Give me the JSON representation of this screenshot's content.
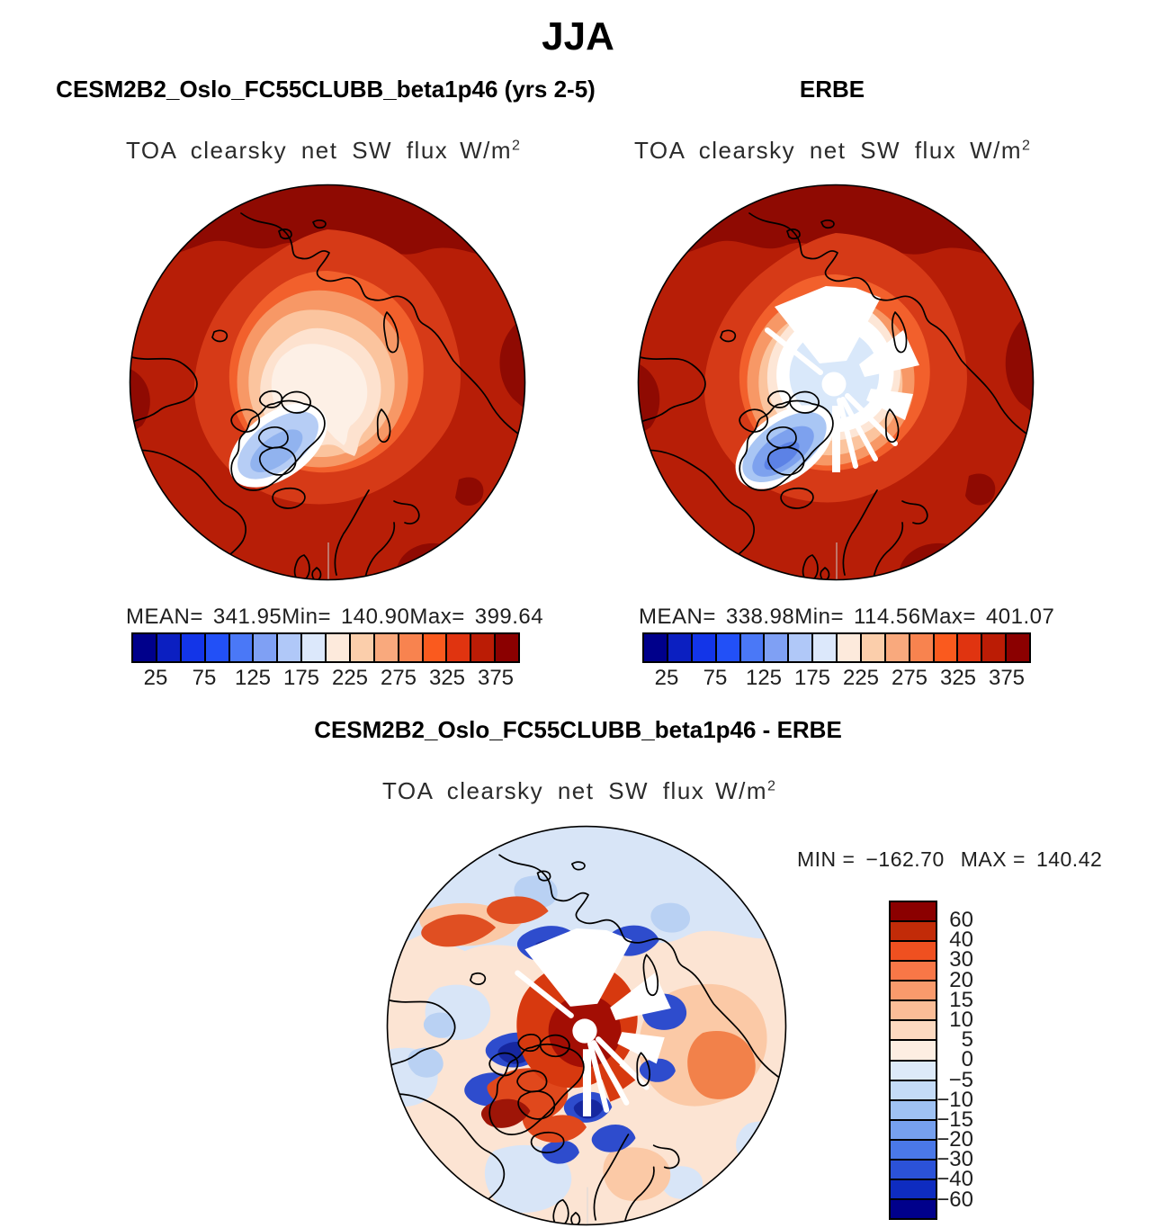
{
  "figure_title": "JJA",
  "panels": {
    "model": {
      "heading": "CESM2B2_Oslo_FC55CLUBB_beta1p46 (yrs 2-5)",
      "field_label": "TOA clearsky net SW flux",
      "units_base": "W/m",
      "units_exp": "2",
      "stats": {
        "mean_label": "MEAN=",
        "mean_value": "341.95",
        "min_label": "Min=",
        "min_value": "140.90",
        "max_label": "Max=",
        "max_value": "399.64"
      }
    },
    "obs": {
      "heading": "ERBE",
      "field_label": "TOA clearsky net SW flux",
      "units_base": "W/m",
      "units_exp": "2",
      "stats": {
        "mean_label": "MEAN=",
        "mean_value": "338.98",
        "min_label": "Min=",
        "min_value": "114.56",
        "max_label": "Max=",
        "max_value": "401.07"
      }
    },
    "diff": {
      "heading": "CESM2B2_Oslo_FC55CLUBB_beta1p46 - ERBE",
      "field_label": "TOA clearsky net SW flux",
      "units_base": "W/m",
      "units_exp": "2",
      "range": {
        "min_label": "MIN =",
        "min_value": "−162.70",
        "max_label": "MAX =",
        "max_value": "140.42"
      }
    }
  },
  "colorbars": {
    "flux": {
      "colors": [
        "#00008b",
        "#0b1fc1",
        "#1335e8",
        "#2250f7",
        "#4a78f7",
        "#7fa0f4",
        "#b0c8f8",
        "#dce8fb",
        "#fdeadc",
        "#fbceab",
        "#f9a97d",
        "#f8834f",
        "#fa5a1e",
        "#e03410",
        "#bb1c05",
        "#8b0000"
      ],
      "ticks": [
        "25",
        "75",
        "125",
        "175",
        "225",
        "275",
        "325",
        "375"
      ]
    },
    "diff": {
      "colors_top_to_bottom": [
        "#8b0000",
        "#c22b08",
        "#ef5020",
        "#f87747",
        "#f99a6c",
        "#fbbd97",
        "#fcd9c0",
        "#fdeee2",
        "#ddeaf9",
        "#c4dbf7",
        "#9fc2f3",
        "#76a0ee",
        "#4a78e8",
        "#2b52d8",
        "#0e2cc0",
        "#00008b"
      ],
      "labels": [
        "60",
        "40",
        "30",
        "20",
        "15",
        "10",
        "5",
        "0",
        "−5",
        "−10",
        "−15",
        "−20",
        "−30",
        "−40",
        "−60"
      ]
    }
  },
  "chart_data": [
    {
      "type": "heatmap",
      "panel": "model",
      "title": "CESM2B2_Oslo_FC55CLUBB_beta1p46 (yrs 2-5)",
      "season": "JJA",
      "variable": "TOA clearsky net SW flux",
      "units": "W/m2",
      "projection": "north polar stereographic",
      "stats": {
        "mean": 341.95,
        "min": 140.9,
        "max": 399.64
      },
      "contour_levels": [
        0,
        25,
        50,
        75,
        100,
        125,
        150,
        175,
        200,
        225,
        250,
        275,
        300,
        325,
        350,
        375,
        400
      ],
      "colorbar_ticks": [
        25,
        75,
        125,
        175,
        225,
        275,
        325,
        375
      ],
      "palette_low_to_high": [
        "#00008b",
        "#0b1fc1",
        "#1335e8",
        "#2250f7",
        "#4a78f7",
        "#7fa0f4",
        "#b0c8f8",
        "#dce8fb",
        "#fdeadc",
        "#fbceab",
        "#f9a97d",
        "#f8834f",
        "#fa5a1e",
        "#e03410",
        "#bb1c05",
        "#8b0000"
      ],
      "legend_position": "bottom"
    },
    {
      "type": "heatmap",
      "panel": "observations",
      "title": "ERBE",
      "season": "JJA",
      "variable": "TOA clearsky net SW flux",
      "units": "W/m2",
      "projection": "north polar stereographic",
      "stats": {
        "mean": 338.98,
        "min": 114.56,
        "max": 401.07
      },
      "contour_levels": [
        0,
        25,
        50,
        75,
        100,
        125,
        150,
        175,
        200,
        225,
        250,
        275,
        300,
        325,
        350,
        375,
        400
      ],
      "colorbar_ticks": [
        25,
        75,
        125,
        175,
        225,
        275,
        325,
        375
      ],
      "palette_low_to_high": [
        "#00008b",
        "#0b1fc1",
        "#1335e8",
        "#2250f7",
        "#4a78f7",
        "#7fa0f4",
        "#b0c8f8",
        "#dce8fb",
        "#fdeadc",
        "#fbceab",
        "#f9a97d",
        "#f8834f",
        "#fa5a1e",
        "#e03410",
        "#bb1c05",
        "#8b0000"
      ],
      "legend_position": "bottom"
    },
    {
      "type": "heatmap",
      "panel": "difference",
      "title": "CESM2B2_Oslo_FC55CLUBB_beta1p46 - ERBE",
      "season": "JJA",
      "variable": "TOA clearsky net SW flux",
      "units": "W/m2",
      "projection": "north polar stereographic",
      "stats": {
        "min": -162.7,
        "max": 140.42
      },
      "contour_levels": [
        -60,
        -40,
        -30,
        -20,
        -15,
        -10,
        -5,
        0,
        5,
        10,
        15,
        20,
        30,
        40,
        60
      ],
      "palette_low_to_high": [
        "#00008b",
        "#0e2cc0",
        "#2b52d8",
        "#4a78e8",
        "#76a0ee",
        "#9fc2f3",
        "#c4dbf7",
        "#ddeaf9",
        "#fdeee2",
        "#fcd9c0",
        "#fbbd97",
        "#f99a6c",
        "#f87747",
        "#ef5020",
        "#c22b08",
        "#8b0000"
      ],
      "legend_position": "right"
    }
  ]
}
